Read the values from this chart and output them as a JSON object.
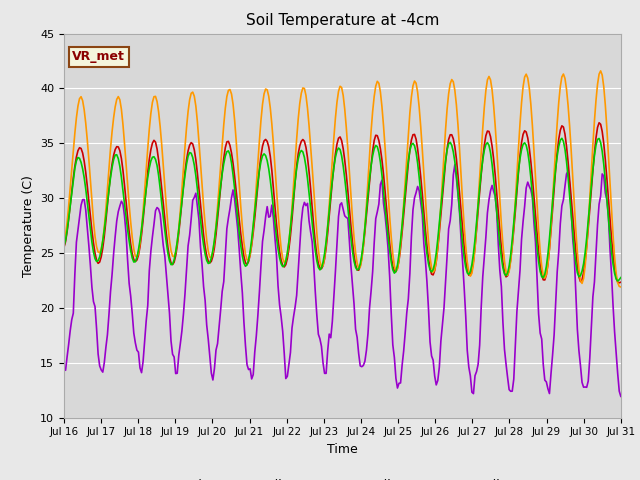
{
  "title": "Soil Temperature at -4cm",
  "xlabel": "Time",
  "ylabel": "Temperature (C)",
  "ylim": [
    10,
    45
  ],
  "bg_color": "#e8e8e8",
  "plot_bg_color": "#d8d8d8",
  "legend_label": "VR_met",
  "series": {
    "Tair": {
      "color": "#9900CC",
      "linewidth": 1.2
    },
    "Tsoil set 1": {
      "color": "#CC0000",
      "linewidth": 1.2
    },
    "Tsoil set 2": {
      "color": "#FF9900",
      "linewidth": 1.2
    },
    "Tsoil set 3": {
      "color": "#00CC00",
      "linewidth": 1.2
    }
  },
  "tick_labels": [
    "Jul 16",
    "Jul 17",
    "Jul 18",
    "Jul 19",
    "Jul 20",
    "Jul 21",
    "Jul 22",
    "Jul 23",
    "Jul 24",
    "Jul 25",
    "Jul 26",
    "Jul 27",
    "Jul 28",
    "Jul 29",
    "Jul 30",
    "Jul 31"
  ],
  "yticks": [
    10,
    15,
    20,
    25,
    30,
    35,
    40,
    45
  ],
  "grid_color": "#ffffff",
  "figsize": [
    6.4,
    4.8
  ],
  "dpi": 100
}
